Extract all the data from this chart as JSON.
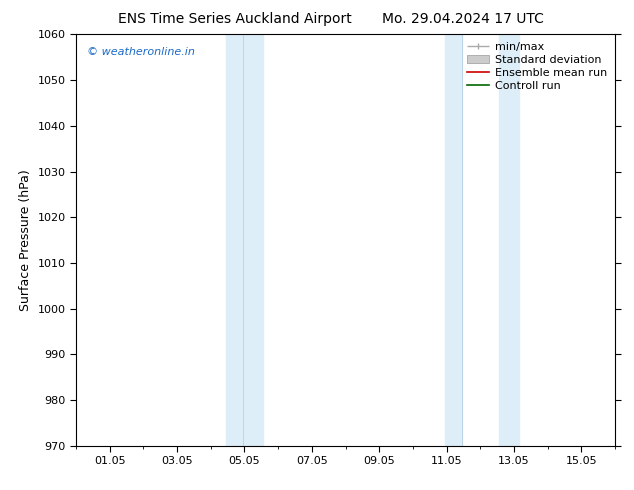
{
  "title_left": "ENS Time Series Auckland Airport",
  "title_right": "Mo. 29.04.2024 17 UTC",
  "ylabel": "Surface Pressure (hPa)",
  "watermark": "© weatheronline.in",
  "ylim": [
    970,
    1060
  ],
  "yticks": [
    970,
    980,
    990,
    1000,
    1010,
    1020,
    1030,
    1040,
    1050,
    1060
  ],
  "xlim": [
    0,
    16
  ],
  "xtick_labels": [
    "01.05",
    "03.05",
    "05.05",
    "07.05",
    "09.05",
    "11.05",
    "13.05",
    "15.05"
  ],
  "xtick_positions": [
    1,
    3,
    5,
    7,
    9,
    11,
    13,
    15
  ],
  "shaded_bands": [
    {
      "x_start": 4.45,
      "x_end": 4.95,
      "color": "#ddeef8"
    },
    {
      "x_start": 4.95,
      "x_end": 5.55,
      "color": "#ddeef8"
    },
    {
      "x_start": 10.95,
      "x_end": 11.45,
      "color": "#ddeef8"
    },
    {
      "x_start": 12.55,
      "x_end": 13.15,
      "color": "#ddeef8"
    }
  ],
  "bg_color": "#ffffff",
  "plot_bg_color": "#ffffff",
  "grid_color": "#cccccc",
  "border_color": "#000000",
  "title_fontsize": 10,
  "watermark_color": "#1a6ac9",
  "watermark_fontsize": 8,
  "legend_fontsize": 8
}
